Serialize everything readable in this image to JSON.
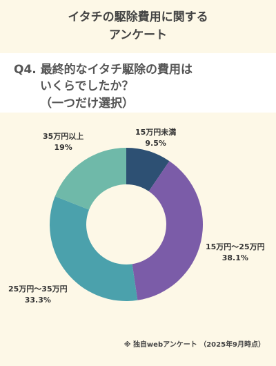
{
  "title": {
    "line1": "イタチの駆除費用に関する",
    "line2": "アンケート"
  },
  "question": {
    "line1": "Q4. 最終的なイタチ駆除の費用は",
    "line2": "いくらでしたか？",
    "line3": "（一つだけ選択）"
  },
  "chart_data": {
    "type": "pie",
    "categories": [
      "15万円未満",
      "15万円～25万円",
      "25万円～35万円",
      "35万円以上"
    ],
    "values": [
      9.5,
      38.1,
      33.3,
      19
    ],
    "value_labels": [
      "9.5%",
      "38.1%",
      "33.3%",
      "19%"
    ],
    "colors": [
      "#2d5073",
      "#7b5ca8",
      "#4ba1ac",
      "#6fb9a9"
    ],
    "donut": true
  },
  "footnote": "※ 独自webアンケート （2025年9月時点）"
}
